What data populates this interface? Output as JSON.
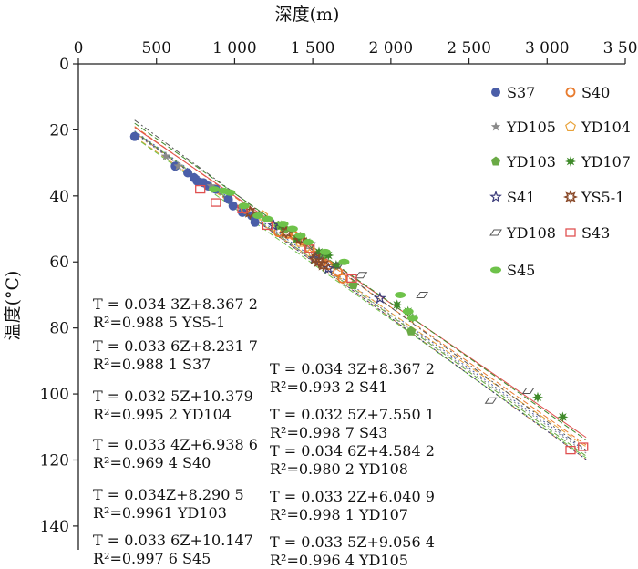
{
  "chart_data": {
    "type": "scatter",
    "xlabel": "深度(m)",
    "ylabel": "温度(°C)",
    "xlim": [
      0,
      3500
    ],
    "ylim": [
      0,
      145
    ],
    "x_axis_position": "top",
    "y_axis_inverted": true,
    "x_ticks": [
      "0",
      "500",
      "1 000",
      "1 500",
      "2 000",
      "2 500",
      "3 000",
      "3 500"
    ],
    "x_tick_values": [
      0,
      500,
      1000,
      1500,
      2000,
      2500,
      3000,
      3500
    ],
    "y_ticks": [
      "0",
      "20",
      "40",
      "60",
      "80",
      "100",
      "120",
      "140"
    ],
    "y_tick_values": [
      0,
      20,
      40,
      60,
      80,
      100,
      120,
      140
    ],
    "grid": false,
    "legend_position": "right",
    "series": [
      {
        "name": "S37",
        "marker": "circle-filled",
        "color": "#4a5ea8",
        "x": [
          360,
          620,
          700,
          740,
          760,
          800,
          830,
          880,
          960,
          990,
          1050,
          1110,
          1130
        ],
        "y": [
          22,
          31,
          33,
          34.5,
          35.5,
          36,
          37,
          38,
          41,
          43,
          45,
          46,
          48
        ]
      },
      {
        "name": "S40",
        "marker": "circle-open",
        "color": "#e87b2e",
        "x": [
          1070,
          1280,
          1340,
          1380,
          1400,
          1430,
          1480,
          1530,
          1560,
          1600,
          1660,
          1690
        ],
        "y": [
          44,
          51,
          51.5,
          52,
          53,
          53.5,
          56,
          58,
          60,
          61,
          63,
          65
        ]
      },
      {
        "name": "YD105",
        "marker": "star5",
        "color": "#8a8a8a",
        "x": [
          560,
          640,
          850
        ],
        "y": [
          28,
          31,
          37
        ]
      },
      {
        "name": "YD104",
        "marker": "pentagon-open",
        "color": "#e8a23a",
        "x": [
          1180,
          1270,
          1330,
          1420,
          1500
        ],
        "y": [
          46,
          50,
          51,
          54,
          57
        ]
      },
      {
        "name": "YD103",
        "marker": "pentagon-filled",
        "color": "#6aaa45",
        "x": [
          1280,
          1320,
          1400,
          1560,
          1760,
          2130
        ],
        "y": [
          49,
          50,
          53,
          58,
          67,
          81
        ]
      },
      {
        "name": "YD107",
        "marker": "star-burst",
        "color": "#3f8a2a",
        "x": [
          1300,
          1400,
          1460,
          1540,
          1600,
          1650,
          2040,
          2110,
          2140,
          2940,
          3100
        ],
        "y": [
          49,
          53,
          54,
          57,
          58,
          61,
          73,
          75,
          77,
          101,
          107
        ]
      },
      {
        "name": "S41",
        "marker": "star-open",
        "color": "#3a3a7a",
        "x": [
          1250,
          1510,
          1600,
          1930
        ],
        "y": [
          49,
          59,
          62,
          71
        ]
      },
      {
        "name": "YS5-1",
        "marker": "star-burst-open",
        "color": "#8a4a2a",
        "x": [
          1100,
          1330,
          1420,
          1520,
          1540,
          1570
        ],
        "y": [
          45,
          51,
          53,
          59,
          60,
          61
        ]
      },
      {
        "name": "YD108",
        "marker": "diamond-open",
        "color": "#555555",
        "x": [
          1480,
          1540,
          1660,
          1810,
          2200,
          2640,
          2880
        ],
        "y": [
          55,
          58,
          61,
          64,
          70,
          102,
          99
        ]
      },
      {
        "name": "S43",
        "marker": "square-open",
        "color": "#e05050",
        "x": [
          780,
          880,
          1050,
          1210,
          1480,
          1750,
          3150,
          3230
        ],
        "y": [
          38,
          42,
          44,
          49,
          56,
          65,
          117,
          116
        ]
      },
      {
        "name": "S45",
        "marker": "ellipse-filled",
        "color": "#6ec24a",
        "x": [
          870,
          930,
          970,
          1060,
          1150,
          1210,
          1310,
          1370,
          1420,
          1470,
          1580,
          1700,
          2060,
          2110,
          2140
        ],
        "y": [
          38,
          38.5,
          39,
          43,
          46,
          47,
          48.5,
          50,
          52,
          54,
          57,
          60,
          70,
          75,
          77
        ]
      }
    ],
    "fit_lines": [
      {
        "name": "YS5-1",
        "slope": 0.0343,
        "intercept": 8.3672,
        "color": "#c0704a",
        "dash": "4 3"
      },
      {
        "name": "S37",
        "slope": 0.0336,
        "intercept": 8.2317,
        "color": "#4a5ea8",
        "dash": "2 3"
      },
      {
        "name": "YD104",
        "slope": 0.0325,
        "intercept": 10.379,
        "color": "#e8a23a",
        "dash": "6 3"
      },
      {
        "name": "S40",
        "slope": 0.0334,
        "intercept": 6.9386,
        "color": "#e87b2e",
        "dash": "6 3"
      },
      {
        "name": "YD103",
        "slope": 0.034,
        "intercept": 8.2905,
        "color": "#6aaa45",
        "dash": "6 3"
      },
      {
        "name": "S45",
        "slope": 0.0336,
        "intercept": 10.147,
        "color": "#6ec24a",
        "dash": "6 3"
      },
      {
        "name": "S41",
        "slope": 0.0343,
        "intercept": 8.3672,
        "color": "#3a3a7a",
        "dash": "2 3"
      },
      {
        "name": "S43",
        "slope": 0.0325,
        "intercept": 7.5501,
        "color": "#e05050",
        "dash": ""
      },
      {
        "name": "YD108",
        "slope": 0.0346,
        "intercept": 4.5842,
        "color": "#555555",
        "dash": "6 3 2 3"
      },
      {
        "name": "YD107",
        "slope": 0.0332,
        "intercept": 6.0409,
        "color": "#3f8a2a",
        "dash": "6 3"
      },
      {
        "name": "YD105",
        "slope": 0.0335,
        "intercept": 9.0564,
        "color": "#8a8a8a",
        "dash": "2 3"
      }
    ],
    "equations_left": [
      {
        "line1": "T = 0.034 3Z+8.367 2",
        "line2": "R²=0.988 5  YS5-1"
      },
      {
        "line1": "T = 0.033 6Z+8.231 7",
        "line2": "R²=0.988 1  S37"
      },
      {
        "line1": "T = 0.032 5Z+10.379",
        "line2": "R²=0.995 2  YD104"
      },
      {
        "line1": "T = 0.033 4Z+6.938 6",
        "line2": "R²=0.969 4  S40"
      },
      {
        "line1": "T = 0.034Z+8.290 5",
        "line2": "R²=0.9961  YD103"
      },
      {
        "line1": "T = 0.033 6Z+10.147",
        "line2": "R²=0.997 6  S45"
      }
    ],
    "equations_right": [
      {
        "line1": "T = 0.034 3Z+8.367 2",
        "line2": "R²=0.993 2  S41"
      },
      {
        "line1": "T = 0.032 5Z+7.550 1",
        "line2": "R²=0.998 7  S43"
      },
      {
        "line1": "T = 0.034 6Z+4.584 2",
        "line2": "R²=0.980 2  YD108"
      },
      {
        "line1": "T = 0.033 2Z+6.040 9",
        "line2": "R²=0.998 1  YD107"
      },
      {
        "line1": "T = 0.033 5Z+9.056 4",
        "line2": "R²=0.996 4  YD105"
      }
    ]
  }
}
